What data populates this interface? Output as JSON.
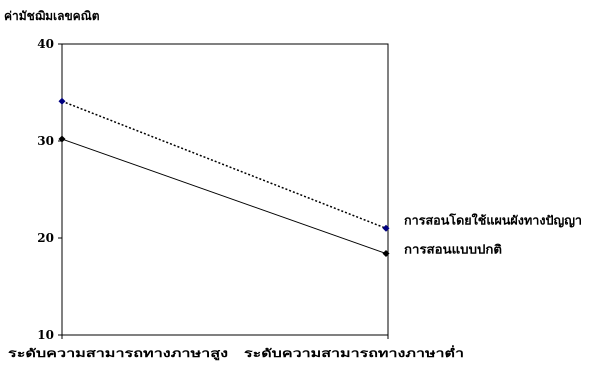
{
  "chart_data": {
    "type": "line",
    "ylabel": "ค่ามัชฌิมเลขคณิต",
    "categories": [
      "ระดับความสามารถทางภาษาสูง",
      "ระดับความสามารถทางภาษาต่ำ"
    ],
    "ylim": [
      10,
      40
    ],
    "yticks": [
      10,
      20,
      30,
      40
    ],
    "grid": false,
    "series": [
      {
        "name": "การสอนโดยใช้แผนผังทางปัญญา",
        "values": [
          34.1,
          21.0
        ],
        "line_style": "dotted",
        "marker": "diamond",
        "marker_color": "#000080",
        "line_color": "#000000"
      },
      {
        "name": "การสอนแบบปกติ",
        "values": [
          30.2,
          18.4
        ],
        "line_style": "solid",
        "marker": "diamond",
        "marker_color": "#000000",
        "line_color": "#000000"
      }
    ]
  }
}
